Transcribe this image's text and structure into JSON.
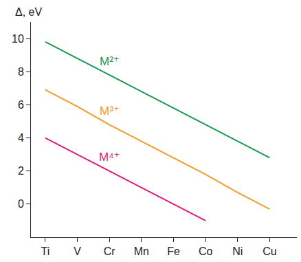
{
  "chart_data": {
    "type": "line",
    "ylabel": "Δ, eV",
    "categories": [
      "Ti",
      "V",
      "Cr",
      "Mn",
      "Fe",
      "Co",
      "Ni",
      "Cu"
    ],
    "series": [
      {
        "name": "M²⁺",
        "color": "#1a9a4f",
        "values": [
          9.8,
          8.8,
          7.8,
          6.8,
          5.8,
          4.8,
          3.8,
          2.8
        ]
      },
      {
        "name": "M³⁺",
        "color": "#f39a2b",
        "values": [
          6.9,
          5.9,
          4.8,
          3.8,
          2.8,
          1.8,
          0.7,
          -0.3
        ]
      },
      {
        "name": "M⁴⁺",
        "color": "#e0197d",
        "values": [
          4.0,
          3.0,
          2.0,
          1.0,
          0.0,
          -1.0,
          null,
          null
        ]
      }
    ],
    "ylim": [
      -2,
      11
    ],
    "yticks": [
      0,
      2,
      4,
      6,
      8,
      10
    ],
    "grid": false
  }
}
